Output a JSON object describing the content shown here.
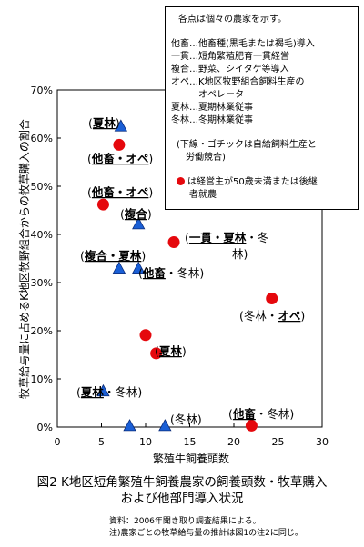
{
  "chart_data": {
    "type": "scatter",
    "xlabel": "繁殖牛飼養頭数",
    "ylabel": "牧草給与量に占めるK地区牧野組合からの牧草購入の割合",
    "xlim": [
      0,
      30
    ],
    "ylim": [
      0,
      70
    ],
    "x_ticks": [
      "0",
      "5",
      "10",
      "15",
      "20",
      "25",
      "30"
    ],
    "y_ticks": [
      "0%",
      "10%",
      "20%",
      "30%",
      "40%",
      "50%",
      "60%",
      "70%"
    ],
    "series": [
      {
        "marker": "triangle",
        "color": "#1a5fd6",
        "points": [
          {
            "x": 7.2,
            "y": 62.5,
            "label": [
              {
                "t": "(",
                "u": false
              },
              {
                "t": "夏林",
                "u": true
              },
              {
                "t": ")",
                "u": false
              }
            ]
          },
          {
            "x": 9.2,
            "y": 42.2,
            "label": [
              {
                "t": "(",
                "u": false
              },
              {
                "t": "複合",
                "u": true
              },
              {
                "t": ")",
                "u": false
              }
            ]
          },
          {
            "x": 7.0,
            "y": 33.0,
            "label": [
              {
                "t": "(",
                "u": false
              },
              {
                "t": "複合・夏林",
                "u": true
              },
              {
                "t": ")",
                "u": false
              }
            ]
          },
          {
            "x": 9.2,
            "y": 33.0,
            "label": [
              {
                "t": "(",
                "u": false
              },
              {
                "t": "他畜",
                "u": true
              },
              {
                "t": "・冬林)",
                "u": false
              }
            ]
          },
          {
            "x": 5.2,
            "y": 7.5,
            "label": [
              {
                "t": "(",
                "u": false
              },
              {
                "t": "夏林",
                "u": true
              },
              {
                "t": "・冬林)",
                "u": false
              }
            ]
          },
          {
            "x": 8.2,
            "y": 0.3,
            "label": []
          },
          {
            "x": 12.2,
            "y": 0.3,
            "label": [
              {
                "t": "(冬林)",
                "u": false
              }
            ]
          }
        ]
      },
      {
        "marker": "circle",
        "color": "#e5080d",
        "points": [
          {
            "x": 7.0,
            "y": 58.6,
            "label": [
              {
                "t": "(",
                "u": false
              },
              {
                "t": "他畜・オペ",
                "u": true
              },
              {
                "t": ")",
                "u": false
              }
            ]
          },
          {
            "x": 5.2,
            "y": 46.2,
            "label": [
              {
                "t": "(",
                "u": false
              },
              {
                "t": "他畜・オペ",
                "u": true
              },
              {
                "t": ")",
                "u": false
              }
            ]
          },
          {
            "x": 13.2,
            "y": 38.4,
            "label": [
              {
                "t": "(",
                "u": false
              },
              {
                "t": "一貫・夏林",
                "u": true
              },
              {
                "t": "・冬",
                "u": false
              }
            ]
          },
          {
            "x": 24.3,
            "y": 26.7,
            "label": [
              {
                "t": "(冬林・",
                "u": false
              },
              {
                "t": "オペ",
                "u": true
              },
              {
                "t": ")",
                "u": false
              }
            ]
          },
          {
            "x": 10.0,
            "y": 19.1,
            "label": []
          },
          {
            "x": 11.2,
            "y": 15.3,
            "label": [
              {
                "t": "(",
                "u": false
              },
              {
                "t": "夏林",
                "u": true
              },
              {
                "t": ")",
                "u": false
              }
            ]
          },
          {
            "x": 22.0,
            "y": 0.3,
            "label": [
              {
                "t": "(",
                "u": false
              },
              {
                "t": "他畜",
                "u": true
              },
              {
                "t": "・冬林)",
                "u": false
              }
            ]
          }
        ]
      }
    ],
    "extra_text": "林)"
  },
  "legend": {
    "head": "各点は個々の農家を示す。",
    "items": [
      "他畜…他畜種(黒毛または褐毛)導入",
      "一貫…短角繁殖肥育一貫経営",
      "複合…野菜、シイタケ等導入",
      "オペ…K地区牧野組合飼料生産の",
      "　　　オペレータ",
      "夏林…夏期林業従事",
      "冬林…冬期林業従事"
    ],
    "note1": "(下線・ゴチックは自給飼料生産と",
    "note2": "　労働競合)",
    "red_note1": "は経営主が50歳未満または後継",
    "red_note2": "者就農"
  },
  "caption": {
    "line1": "図2  K地区短角繁殖牛飼養農家の飼養頭数・牧草購入",
    "line2": "および他部門導入状況"
  },
  "notes": {
    "line1": "資料：2006年聞き取り調査結果による。",
    "line2": "注)農家ごとの牧草給与量の推計は図1の注2に同じ。"
  }
}
